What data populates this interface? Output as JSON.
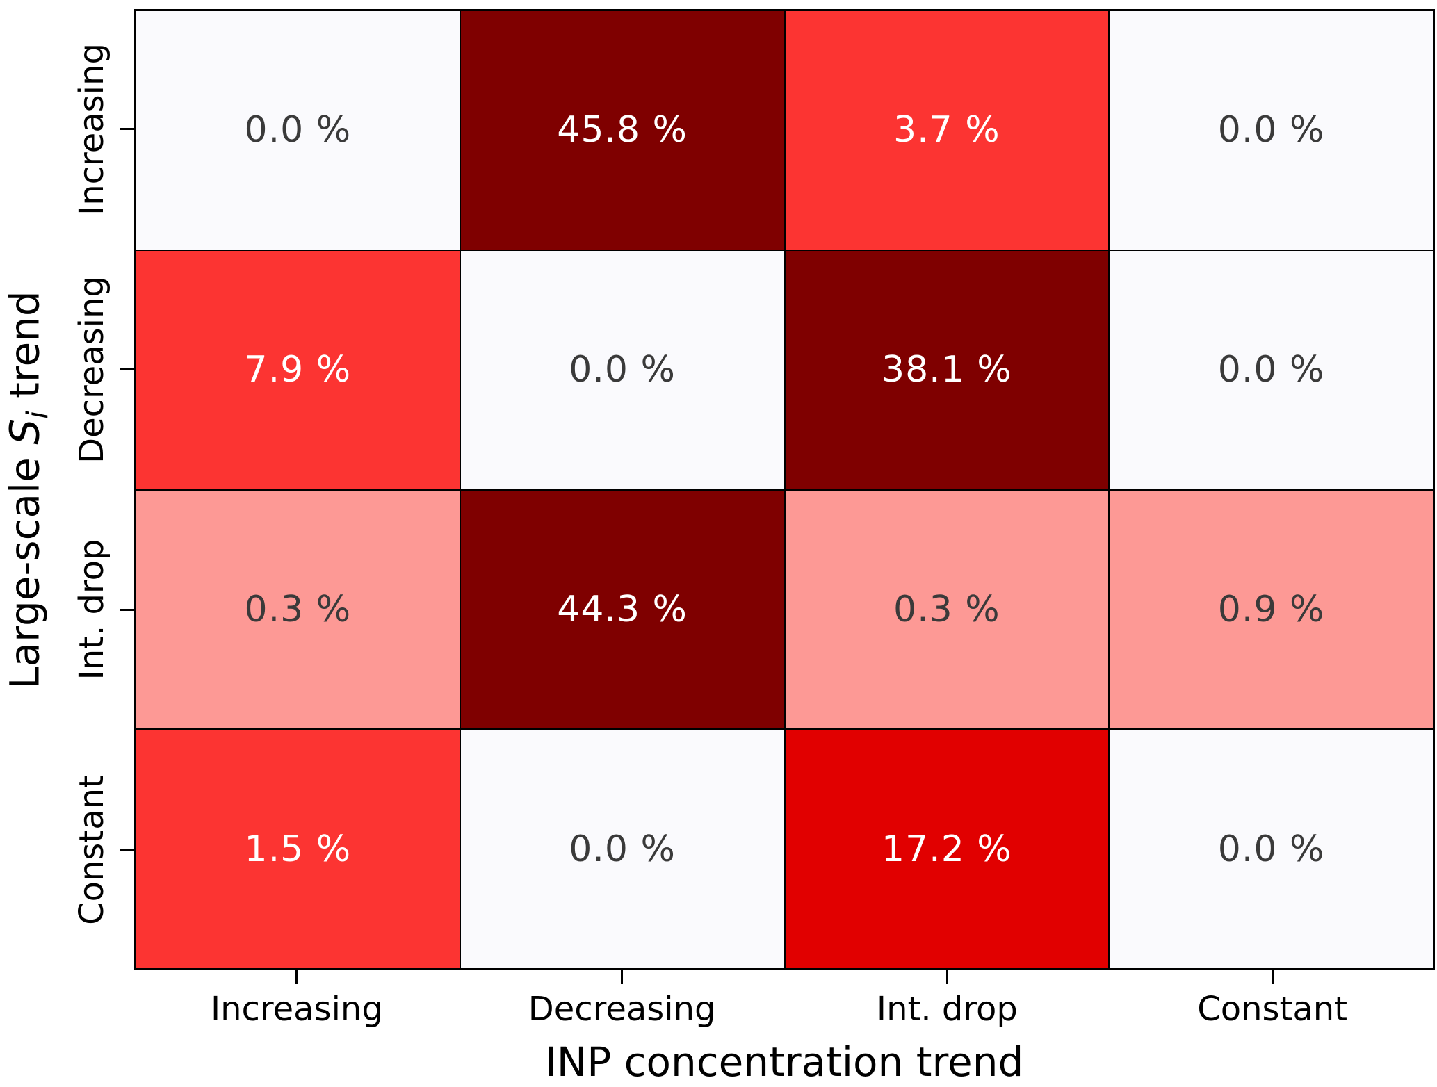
{
  "figure": {
    "ylabel_prefix": "Large-scale ",
    "ylabel_var": "S",
    "ylabel_sub": "i",
    "ylabel_suffix": " trend"
  },
  "chart_data": {
    "type": "heatmap",
    "title": "",
    "xlabel": "INP concentration trend",
    "ylabel": "Large-scale S_i trend",
    "x_categories": [
      "Increasing",
      "Decreasing",
      "Int. drop",
      "Constant"
    ],
    "y_categories": [
      "Increasing",
      "Decreasing",
      "Int. drop",
      "Constant"
    ],
    "values_percent": [
      [
        0.0,
        45.8,
        3.7,
        0.0
      ],
      [
        7.9,
        0.0,
        38.1,
        0.0
      ],
      [
        0.3,
        44.3,
        0.3,
        0.9
      ],
      [
        1.5,
        0.0,
        17.2,
        0.0
      ]
    ],
    "cell_labels": [
      [
        "0.0 %",
        "45.8 %",
        "3.7 %",
        "0.0 %"
      ],
      [
        "7.9 %",
        "0.0 %",
        "38.1 %",
        "0.0 %"
      ],
      [
        "0.3 %",
        "44.3 %",
        "0.3 %",
        "0.9 %"
      ],
      [
        "1.5 %",
        "0.0 %",
        "17.2 %",
        "0.0 %"
      ]
    ],
    "cell_colors": [
      [
        "#fafafd",
        "#7f0000",
        "#fc3432",
        "#fafafd"
      ],
      [
        "#fc3432",
        "#fafafd",
        "#7f0000",
        "#fafafd"
      ],
      [
        "#fd9995",
        "#7f0000",
        "#fd9995",
        "#fd9995"
      ],
      [
        "#fc3432",
        "#fafafd",
        "#e10000",
        "#fafafd"
      ]
    ],
    "label_colors": [
      [
        "#3a3a3a",
        "#ffffff",
        "#ffffff",
        "#3a3a3a"
      ],
      [
        "#ffffff",
        "#3a3a3a",
        "#ffffff",
        "#3a3a3a"
      ],
      [
        "#3a3a3a",
        "#ffffff",
        "#3a3a3a",
        "#3a3a3a"
      ],
      [
        "#ffffff",
        "#3a3a3a",
        "#ffffff",
        "#3a3a3a"
      ]
    ],
    "grid_line_color": "#000000",
    "background_color": "#ffffff",
    "legend": "none"
  }
}
